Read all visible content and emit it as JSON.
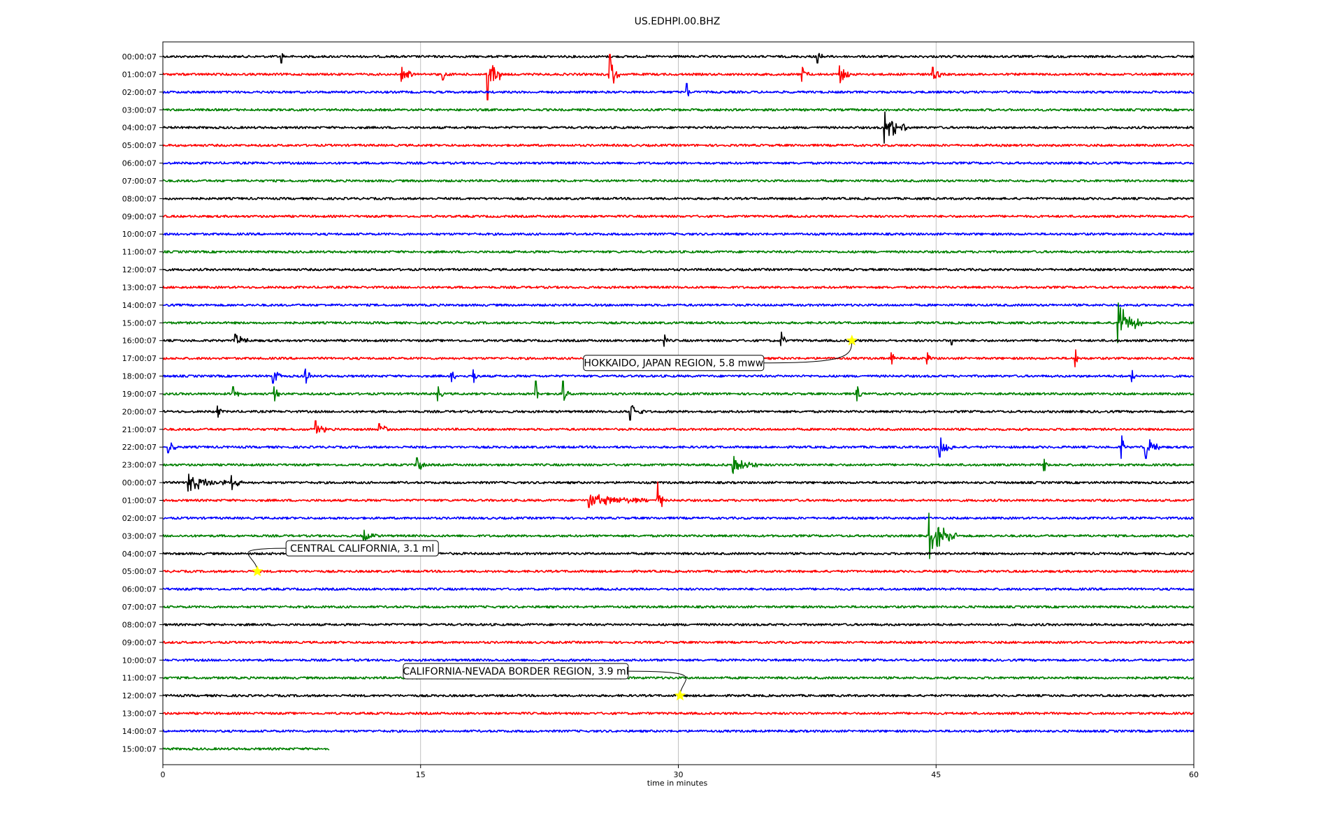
{
  "chart_data": {
    "type": "line",
    "title": "US.EDHPI.00.BHZ",
    "xlabel": "time in minutes",
    "ylabel": "",
    "xlim": [
      0,
      60
    ],
    "x_ticks": [
      0,
      15,
      30,
      45,
      60
    ],
    "grid": "vertical",
    "trace_colors": [
      "#000000",
      "#ff0000",
      "#0000ff",
      "#008000"
    ],
    "rows": [
      "00:00:07",
      "01:00:07",
      "02:00:07",
      "03:00:07",
      "04:00:07",
      "05:00:07",
      "06:00:07",
      "07:00:07",
      "08:00:07",
      "09:00:07",
      "10:00:07",
      "11:00:07",
      "12:00:07",
      "13:00:07",
      "14:00:07",
      "15:00:07",
      "16:00:07",
      "17:00:07",
      "18:00:07",
      "19:00:07",
      "20:00:07",
      "21:00:07",
      "22:00:07",
      "23:00:07",
      "00:00:07",
      "01:00:07",
      "02:00:07",
      "03:00:07",
      "04:00:07",
      "05:00:07",
      "06:00:07",
      "07:00:07",
      "08:00:07",
      "09:00:07",
      "10:00:07",
      "11:00:07",
      "12:00:07",
      "13:00:07",
      "14:00:07",
      "15:00:07"
    ],
    "last_row_end_minute": 9.7,
    "events": [
      {
        "label": "HOKKAIDO, JAPAN REGION, 5.8 mww",
        "row": 16,
        "minute": 40.1
      },
      {
        "label": "CENTRAL CALIFORNIA, 3.1 ml",
        "row": 29,
        "minute": 5.5
      },
      {
        "label": "CALIFORNIA-NEVADA BORDER REGION, 3.9 ml",
        "row": 36,
        "minute": 30.1
      }
    ],
    "marker_color": "#ffff00",
    "bursts": [
      {
        "row": 0,
        "minute": 6.9,
        "amp": 0.45,
        "dur": 0.15
      },
      {
        "row": 0,
        "minute": 38.1,
        "amp": 0.45,
        "dur": 0.3
      },
      {
        "row": 1,
        "minute": 13.9,
        "amp": 0.5,
        "dur": 0.7
      },
      {
        "row": 1,
        "minute": 16.3,
        "amp": 0.4,
        "dur": 0.4
      },
      {
        "row": 1,
        "minute": 18.9,
        "amp": 1.8,
        "dur": 0.8
      },
      {
        "row": 1,
        "minute": 26.0,
        "amp": 1.4,
        "dur": 0.6
      },
      {
        "row": 1,
        "minute": 37.2,
        "amp": 0.5,
        "dur": 0.4
      },
      {
        "row": 1,
        "minute": 39.4,
        "amp": 0.6,
        "dur": 0.6
      },
      {
        "row": 1,
        "minute": 44.8,
        "amp": 0.5,
        "dur": 0.6
      },
      {
        "row": 2,
        "minute": 30.5,
        "amp": 0.6,
        "dur": 0.2
      },
      {
        "row": 4,
        "minute": 42.0,
        "amp": 1.1,
        "dur": 1.3
      },
      {
        "row": 15,
        "minute": 55.6,
        "amp": 1.4,
        "dur": 1.4
      },
      {
        "row": 16,
        "minute": 4.2,
        "amp": 0.45,
        "dur": 0.8
      },
      {
        "row": 16,
        "minute": 29.2,
        "amp": 0.4,
        "dur": 0.2
      },
      {
        "row": 16,
        "minute": 36.0,
        "amp": 0.6,
        "dur": 0.3
      },
      {
        "row": 16,
        "minute": 45.9,
        "amp": 0.3,
        "dur": 0.3
      },
      {
        "row": 17,
        "minute": 42.4,
        "amp": 0.4,
        "dur": 0.2
      },
      {
        "row": 17,
        "minute": 44.5,
        "amp": 0.4,
        "dur": 0.2
      },
      {
        "row": 17,
        "minute": 53.1,
        "amp": 0.6,
        "dur": 0.2
      },
      {
        "row": 18,
        "minute": 6.4,
        "amp": 0.5,
        "dur": 0.5
      },
      {
        "row": 18,
        "minute": 8.3,
        "amp": 0.5,
        "dur": 0.3
      },
      {
        "row": 18,
        "minute": 16.8,
        "amp": 0.4,
        "dur": 0.4
      },
      {
        "row": 18,
        "minute": 18.1,
        "amp": 0.45,
        "dur": 0.3
      },
      {
        "row": 18,
        "minute": 56.4,
        "amp": 0.4,
        "dur": 0.2
      },
      {
        "row": 19,
        "minute": 4.1,
        "amp": 0.5,
        "dur": 0.4
      },
      {
        "row": 19,
        "minute": 6.5,
        "amp": 0.5,
        "dur": 0.3
      },
      {
        "row": 19,
        "minute": 16.0,
        "amp": 0.5,
        "dur": 0.3
      },
      {
        "row": 19,
        "minute": 21.7,
        "amp": 0.9,
        "dur": 0.2
      },
      {
        "row": 19,
        "minute": 23.3,
        "amp": 0.9,
        "dur": 0.3
      },
      {
        "row": 19,
        "minute": 40.4,
        "amp": 0.5,
        "dur": 0.4
      },
      {
        "row": 20,
        "minute": 3.2,
        "amp": 0.4,
        "dur": 0.2
      },
      {
        "row": 20,
        "minute": 27.2,
        "amp": 0.6,
        "dur": 0.8
      },
      {
        "row": 21,
        "minute": 8.9,
        "amp": 0.6,
        "dur": 0.6
      },
      {
        "row": 21,
        "minute": 12.6,
        "amp": 0.4,
        "dur": 0.6
      },
      {
        "row": 22,
        "minute": 0.3,
        "amp": 0.4,
        "dur": 0.5
      },
      {
        "row": 22,
        "minute": 45.2,
        "amp": 0.7,
        "dur": 0.8
      },
      {
        "row": 22,
        "minute": 55.8,
        "amp": 0.8,
        "dur": 0.2
      },
      {
        "row": 22,
        "minute": 57.2,
        "amp": 0.8,
        "dur": 0.8
      },
      {
        "row": 23,
        "minute": 14.8,
        "amp": 0.5,
        "dur": 0.5
      },
      {
        "row": 23,
        "minute": 33.2,
        "amp": 0.6,
        "dur": 1.4
      },
      {
        "row": 23,
        "minute": 51.3,
        "amp": 0.4,
        "dur": 0.2
      },
      {
        "row": 24,
        "minute": 1.5,
        "amp": 0.6,
        "dur": 2.2
      },
      {
        "row": 24,
        "minute": 4.0,
        "amp": 0.5,
        "dur": 0.6
      },
      {
        "row": 25,
        "minute": 24.8,
        "amp": 0.5,
        "dur": 3.5
      },
      {
        "row": 25,
        "minute": 28.8,
        "amp": 1.3,
        "dur": 0.3
      },
      {
        "row": 27,
        "minute": 11.7,
        "amp": 0.4,
        "dur": 0.8
      },
      {
        "row": 27,
        "minute": 44.6,
        "amp": 1.6,
        "dur": 1.6
      }
    ]
  }
}
